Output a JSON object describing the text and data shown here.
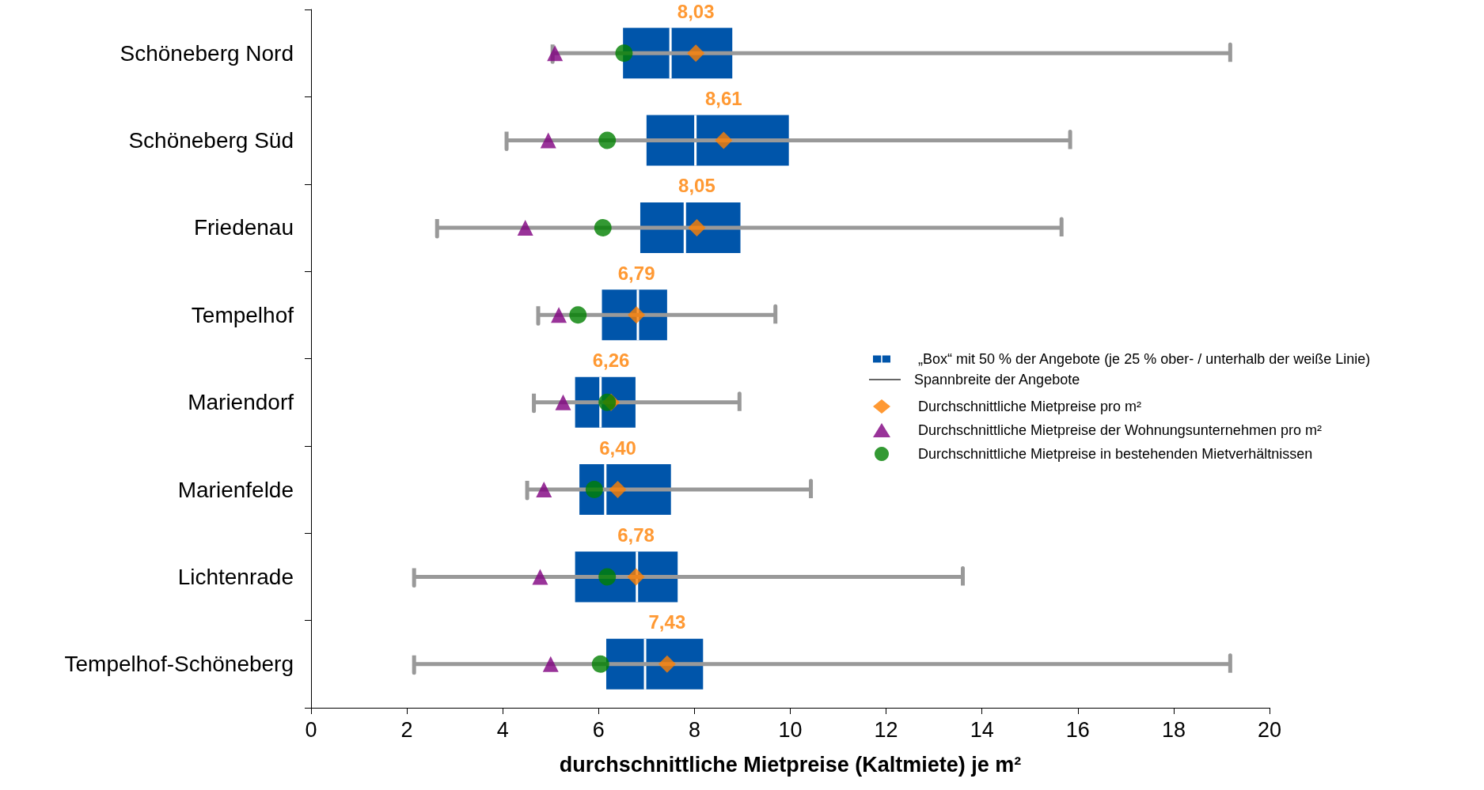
{
  "chart_data": {
    "type": "box",
    "orientation": "horizontal",
    "xlabel": "durchschnittliche Mietpreise (Kaltmiete) je m²",
    "categories": [
      "Schöneberg Nord",
      "Schöneberg Süd",
      "Friedenau",
      "Tempelhof",
      "Mariendorf",
      "Marienfelde",
      "Lichtenrade",
      "Tempelhof-Schöneberg"
    ],
    "xlim": [
      0,
      20
    ],
    "xticks": [
      0,
      2,
      4,
      6,
      8,
      10,
      12,
      14,
      16,
      18,
      20
    ],
    "grid": false,
    "legend": "right",
    "annotations": [
      "Spannbreite der Angebote"
    ],
    "series": [
      {
        "type": "box",
        "name": "„Box“ mit 50 % der Angebote (je 25 % ober- / unterhalb der weiße Linie)",
        "color": "#0055aa",
        "boxes": [
          {
            "low": 5.04,
            "q1": 6.51,
            "median": 7.5,
            "q3": 8.79,
            "high": 19.18
          },
          {
            "low": 4.08,
            "q1": 7.0,
            "median": 8.02,
            "q3": 9.97,
            "high": 15.84
          },
          {
            "low": 2.63,
            "q1": 6.87,
            "median": 7.8,
            "q3": 8.96,
            "high": 15.66
          },
          {
            "low": 4.74,
            "q1": 6.07,
            "median": 6.82,
            "q3": 7.43,
            "high": 9.69
          },
          {
            "low": 4.65,
            "q1": 5.51,
            "median": 6.04,
            "q3": 6.77,
            "high": 8.94
          },
          {
            "low": 4.51,
            "q1": 5.6,
            "median": 6.14,
            "q3": 7.51,
            "high": 10.43
          },
          {
            "low": 2.15,
            "q1": 5.51,
            "median": 6.8,
            "q3": 7.65,
            "high": 13.6
          },
          {
            "low": 2.15,
            "q1": 6.16,
            "median": 6.97,
            "q3": 8.18,
            "high": 19.18
          }
        ]
      },
      {
        "type": "scatter",
        "name": "Durchschnittliche Mietpreise pro m²",
        "color": "#ff7f00",
        "marker": "diamond",
        "values": [
          8.03,
          8.61,
          8.05,
          6.79,
          6.26,
          6.4,
          6.78,
          7.43
        ],
        "value_labels": [
          "8,03",
          "8,61",
          "8,05",
          "6,79",
          "6,26",
          "6,40",
          "6,78",
          "7,43"
        ]
      },
      {
        "type": "scatter",
        "name": "Durchschnittliche Mietpreise der Wohnungsunternehmen pro m²",
        "color": "#800080",
        "marker": "triangle",
        "values": [
          5.09,
          4.95,
          4.47,
          5.17,
          5.26,
          4.86,
          4.78,
          5.0
        ]
      },
      {
        "type": "scatter",
        "name": "Durchschnittliche Mietpreise in bestehenden Mietverhältnissen",
        "color": "#008000",
        "marker": "circle",
        "values": [
          6.53,
          6.18,
          6.09,
          5.57,
          6.18,
          5.91,
          6.18,
          6.04
        ]
      }
    ]
  }
}
